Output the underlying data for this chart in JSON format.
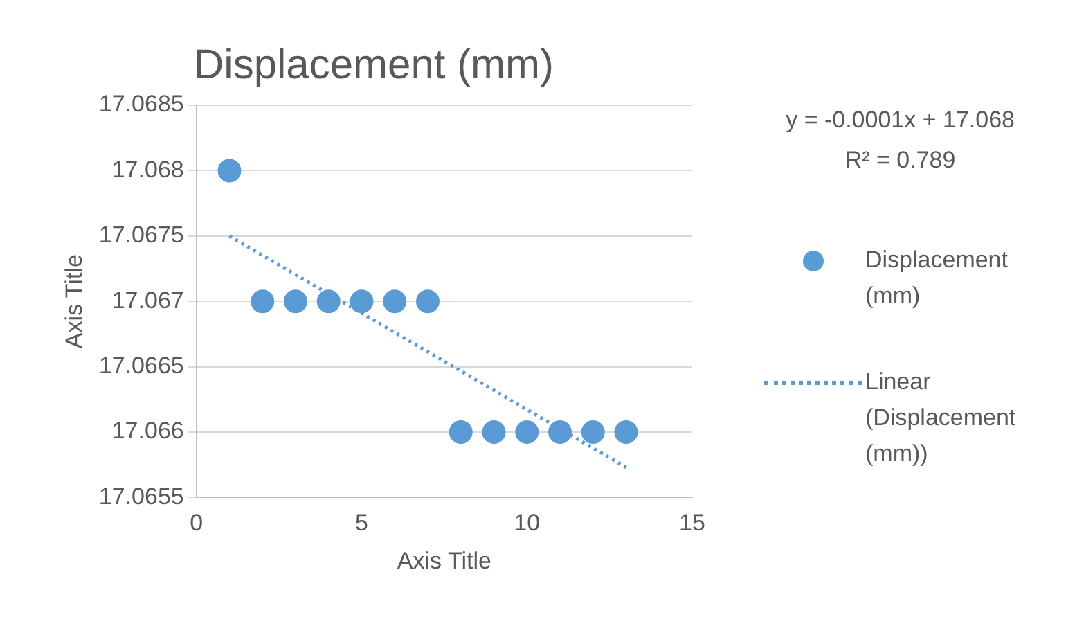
{
  "chart_data": {
    "type": "scatter",
    "title": "Displacement (mm)",
    "xlabel": "Axis Title",
    "ylabel": "Axis Title",
    "annotations": [
      "y = -0.0001x + 17.068",
      "R² = 0.789"
    ],
    "series": [
      {
        "name": "Displacement (mm)",
        "color": "#5b9bd5",
        "marker": "circle",
        "x": [
          1,
          2,
          3,
          4,
          5,
          6,
          7,
          8,
          9,
          10,
          11,
          12,
          13
        ],
        "values": [
          17.068,
          17.067,
          17.067,
          17.067,
          17.067,
          17.067,
          17.067,
          17.066,
          17.066,
          17.066,
          17.066,
          17.066,
          17.066
        ]
      },
      {
        "name": "Linear (Displacement (mm))",
        "type": "line",
        "color": "#5b9bd5",
        "line_style": "dotted",
        "marker": "none",
        "x": [
          1,
          13
        ],
        "values": [
          17.0675,
          17.06573
        ]
      }
    ],
    "xlim": [
      0,
      15
    ],
    "xticks": [
      0,
      5,
      10,
      15
    ],
    "ylim": [
      17.0655,
      17.0685
    ],
    "yticks": [
      17.0655,
      17.066,
      17.0665,
      17.067,
      17.0675,
      17.068,
      17.0685
    ],
    "grid": "y",
    "legend": "right"
  }
}
